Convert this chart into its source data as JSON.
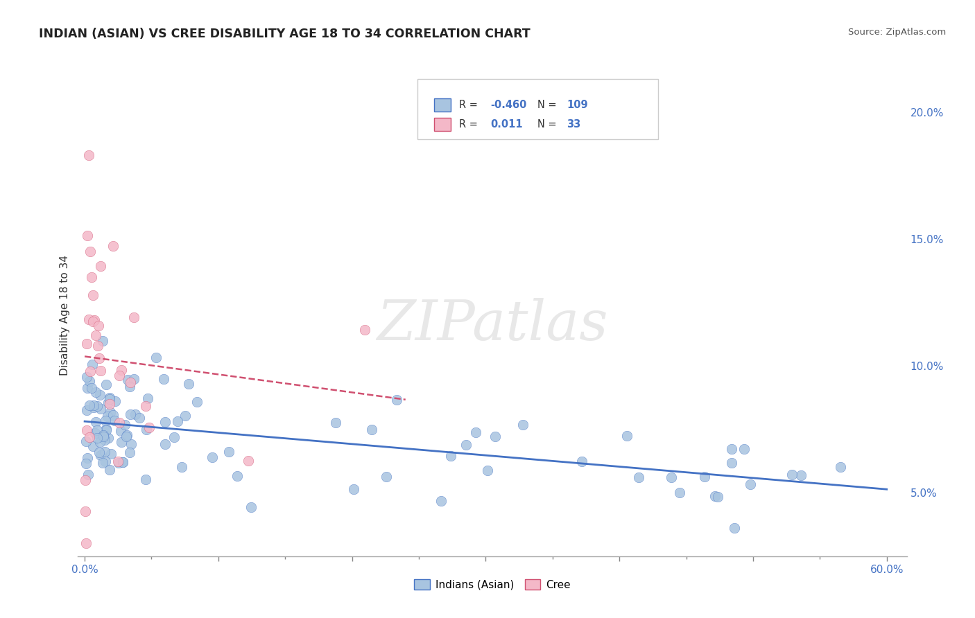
{
  "title": "INDIAN (ASIAN) VS CREE DISABILITY AGE 18 TO 34 CORRELATION CHART",
  "source": "Source: ZipAtlas.com",
  "ylabel": "Disability Age 18 to 34",
  "xlim": [
    -0.005,
    0.615
  ],
  "ylim": [
    0.025,
    0.215
  ],
  "xtick_positions": [
    0.0,
    0.1,
    0.2,
    0.3,
    0.4,
    0.5,
    0.6
  ],
  "xtick_minor_positions": [
    0.05,
    0.15,
    0.25,
    0.35,
    0.45,
    0.55
  ],
  "xtick_labels_sparse": {
    "0.0": "0.0%",
    "0.6": "60.0%"
  },
  "yticks_right": [
    0.05,
    0.1,
    0.15,
    0.2
  ],
  "ytick_labels_right": [
    "5.0%",
    "10.0%",
    "15.0%",
    "20.0%"
  ],
  "legend_r_indian": "-0.460",
  "legend_n_indian": "109",
  "legend_r_cree": "0.011",
  "legend_n_cree": "33",
  "blue_color": "#a8c4e0",
  "blue_line_color": "#4472C4",
  "pink_color": "#f4b8c8",
  "pink_line_color": "#d05070",
  "watermark": "ZIPatlas",
  "background_color": "#ffffff",
  "grid_color": "#d0d0d0"
}
